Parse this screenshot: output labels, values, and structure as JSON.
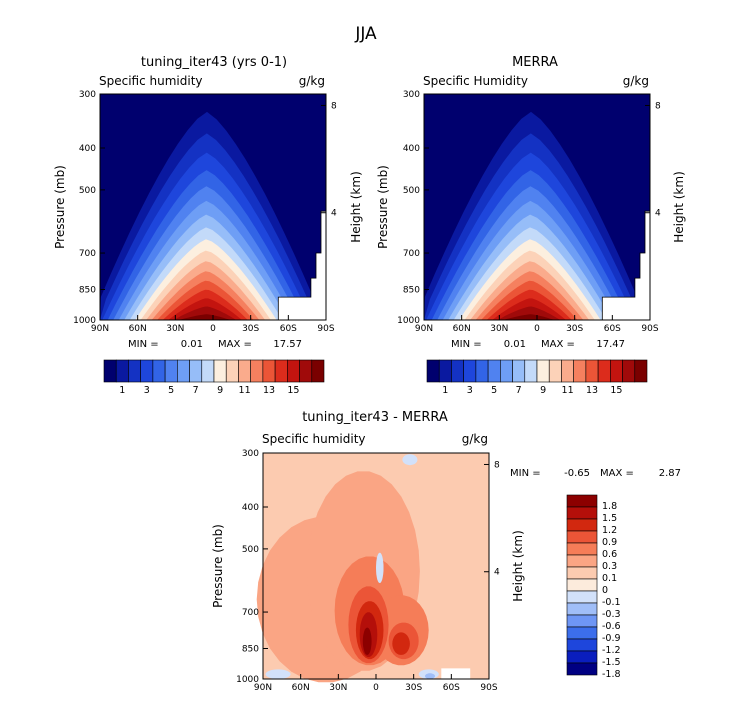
{
  "figure": {
    "title": "JJA",
    "colors": {
      "abs": [
        "#00006e",
        "#0a19a0",
        "#1432c3",
        "#1e46dc",
        "#3264e6",
        "#5082f0",
        "#6e9ef5",
        "#96bdf8",
        "#c3daf9",
        "#fcefdf",
        "#fcd2b8",
        "#faab8c",
        "#f5805f",
        "#eb5537",
        "#dc2c1c",
        "#c3140f",
        "#a00a0a",
        "#7a0000"
      ],
      "diff": [
        "#000082",
        "#0a1ebe",
        "#1e46dc",
        "#3c6eeb",
        "#6e96f5",
        "#a0bef8",
        "#d2e1fa",
        "#fcebdc",
        "#fccbb0",
        "#faa584",
        "#f57d58",
        "#eb5537",
        "#d2280f",
        "#b40f0a",
        "#8c0000"
      ]
    }
  },
  "chart_data": [
    {
      "type": "heatmap",
      "panel": "model",
      "title": "tuning_iter43 (yrs 0-1)",
      "subtitle_left": "Specific humidity",
      "subtitle_right": "g/kg",
      "xlabel": "",
      "ylabel": "Pressure (mb)",
      "ylabel_right": "Height (km)",
      "x_ticks": [
        "90N",
        "60N",
        "30N",
        "0",
        "30S",
        "60S",
        "90S"
      ],
      "y_ticks": [
        "300",
        "400",
        "500",
        "700",
        "850",
        "1000"
      ],
      "y_tick_values": [
        300,
        400,
        500,
        700,
        850,
        1000
      ],
      "height_ticks": [
        "8",
        "4"
      ],
      "height_tick_values": [
        8,
        4
      ],
      "x_range": [
        90,
        -90
      ],
      "y_range": [
        300,
        1000
      ],
      "min": "0.01",
      "max": "17.57",
      "min_label": "MIN =",
      "max_label": "MAX =",
      "peak_lat": 5,
      "peak_value": 17.57,
      "colorbar_labels": [
        "1",
        "3",
        "5",
        "7",
        "9",
        "11",
        "13",
        "15"
      ],
      "colorbar_label_values": [
        1,
        3,
        5,
        7,
        9,
        11,
        13,
        15
      ]
    },
    {
      "type": "heatmap",
      "panel": "obs",
      "title": "MERRA",
      "subtitle_left": "Specific Humidity",
      "subtitle_right": "g/kg",
      "xlabel": "",
      "ylabel": "Pressure (mb)",
      "ylabel_right": "Height (km)",
      "x_ticks": [
        "90N",
        "60N",
        "30N",
        "0",
        "30S",
        "60S",
        "90S"
      ],
      "y_ticks": [
        "300",
        "400",
        "500",
        "700",
        "850",
        "1000"
      ],
      "y_tick_values": [
        300,
        400,
        500,
        700,
        850,
        1000
      ],
      "height_ticks": [
        "8",
        "4"
      ],
      "height_tick_values": [
        8,
        4
      ],
      "x_range": [
        90,
        -90
      ],
      "y_range": [
        300,
        1000
      ],
      "min": "0.01",
      "max": "17.47",
      "min_label": "MIN =",
      "max_label": "MAX =",
      "peak_lat": 5,
      "peak_value": 17.47,
      "colorbar_labels": [
        "1",
        "3",
        "5",
        "7",
        "9",
        "11",
        "13",
        "15"
      ],
      "colorbar_label_values": [
        1,
        3,
        5,
        7,
        9,
        11,
        13,
        15
      ]
    },
    {
      "type": "heatmap",
      "panel": "diff",
      "title": "tuning_iter43 - MERRA",
      "subtitle_left": "Specific humidity",
      "subtitle_right": "g/kg",
      "xlabel": "",
      "ylabel": "Pressure (mb)",
      "ylabel_right": "Height (km)",
      "x_ticks": [
        "90N",
        "60N",
        "30N",
        "0",
        "30S",
        "60S",
        "90S"
      ],
      "y_ticks": [
        "300",
        "400",
        "500",
        "700",
        "850",
        "1000"
      ],
      "y_tick_values": [
        300,
        400,
        500,
        700,
        850,
        1000
      ],
      "height_ticks": [
        "8",
        "4"
      ],
      "height_tick_values": [
        8,
        4
      ],
      "x_range": [
        90,
        -90
      ],
      "y_range": [
        300,
        1000
      ],
      "min": "-0.65",
      "max": "2.87",
      "min_label": "MIN =",
      "max_label": "MAX =",
      "peak_lat": 7,
      "peak_value": 2.87,
      "colorbar_labels": [
        "1.8",
        "1.5",
        "1.2",
        "0.9",
        "0.6",
        "0.3",
        "0.1",
        "0",
        "-0.1",
        "-0.3",
        "-0.6",
        "-0.9",
        "-1.2",
        "-1.5",
        "-1.8"
      ],
      "colorbar_label_values": [
        1.8,
        1.5,
        1.2,
        0.9,
        0.6,
        0.3,
        0.1,
        0,
        -0.1,
        -0.3,
        -0.6,
        -0.9,
        -1.2,
        -1.5,
        -1.8
      ]
    }
  ]
}
